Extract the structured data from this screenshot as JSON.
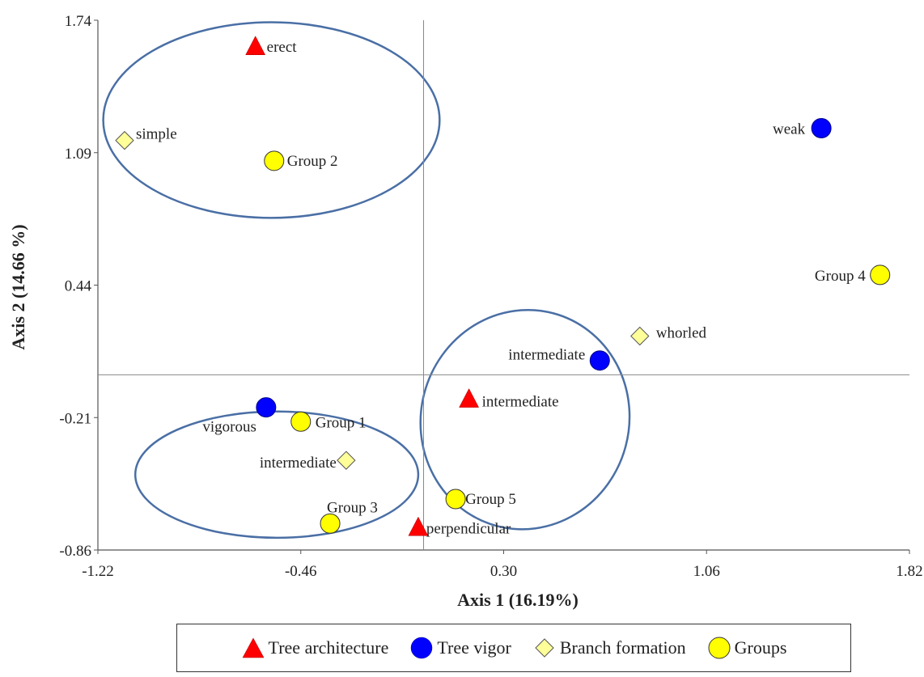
{
  "chart_data": {
    "type": "scatter",
    "title": "",
    "xlabel": "Axis 1 (16.19%)",
    "ylabel": "Axis 2 (14.66 %)",
    "xlim": [
      -1.22,
      1.82
    ],
    "ylim": [
      -0.86,
      1.74
    ],
    "xticks": [
      "-1.22",
      "-0.46",
      "0.30",
      "1.06",
      "1.82"
    ],
    "yticks": [
      "-0.86",
      "-0.21",
      "0.44",
      "1.09",
      "1.74"
    ],
    "reference_lines": {
      "x": 0.0,
      "y": 0.0
    },
    "grid": false,
    "legend_position": "bottom",
    "series": [
      {
        "name": "Tree architecture",
        "marker": "triangle",
        "color": "#ff0000",
        "points": [
          {
            "label": "erect",
            "x": -0.63,
            "y": 1.61
          },
          {
            "label": "intermediate",
            "x": 0.17,
            "y": -0.12
          },
          {
            "label": "perpendicular",
            "x": -0.02,
            "y": -0.75
          }
        ]
      },
      {
        "name": "Tree vigor",
        "marker": "circle",
        "color": "#0000ff",
        "points": [
          {
            "label": "weak",
            "x": 1.49,
            "y": 1.21
          },
          {
            "label": "intermediate",
            "x": 0.66,
            "y": 0.07
          },
          {
            "label": "vigorous",
            "x": -0.59,
            "y": -0.16
          }
        ]
      },
      {
        "name": "Branch formation",
        "marker": "diamond",
        "color": "#ffff99",
        "points": [
          {
            "label": "simple",
            "x": -1.12,
            "y": 1.15
          },
          {
            "label": "whorled",
            "x": 0.81,
            "y": 0.19
          },
          {
            "label": "intermediate",
            "x": -0.29,
            "y": -0.42
          }
        ]
      },
      {
        "name": "Groups",
        "marker": "circle",
        "color": "#ffff00",
        "points": [
          {
            "label": "Group 2",
            "x": -0.56,
            "y": 1.05
          },
          {
            "label": "Group 4",
            "x": 1.71,
            "y": 0.49
          },
          {
            "label": "Group 1",
            "x": -0.46,
            "y": -0.23
          },
          {
            "label": "Group 5",
            "x": 0.12,
            "y": -0.61
          },
          {
            "label": "Group 3",
            "x": -0.35,
            "y": -0.73
          }
        ]
      }
    ],
    "clusters": [
      {
        "cx": -0.57,
        "cy": 1.25,
        "rx": 0.63,
        "ry": 0.48
      },
      {
        "cx": 0.38,
        "cy": -0.22,
        "rx": 0.39,
        "ry": 0.54,
        "rotate": 15
      },
      {
        "cx": -0.55,
        "cy": -0.49,
        "rx": 0.53,
        "ry": 0.31
      }
    ]
  },
  "colors": {
    "cluster_outline": "#4a6fa5",
    "axis": "#555555"
  }
}
